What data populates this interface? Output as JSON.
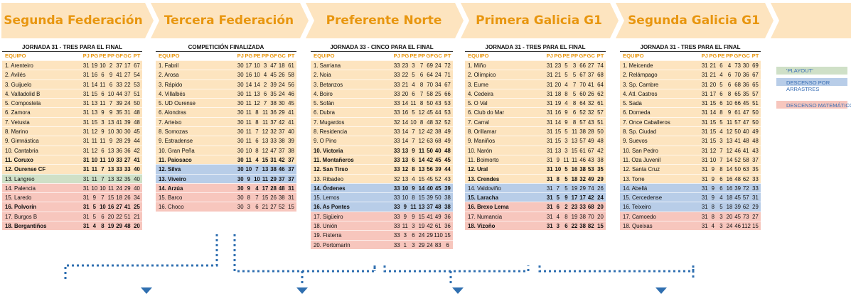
{
  "colors": {
    "header_text": "#e8960f",
    "banner": "#fde4bf",
    "playout": "#cfe0c7",
    "arrastres": "#b8cde8",
    "matematico": "#f7c6bd",
    "arrow": "#2f6fb0"
  },
  "columns": [
    "EQUIPO",
    "PJ",
    "PG",
    "PE",
    "PP",
    "GF",
    "GC",
    "PT"
  ],
  "legend": [
    {
      "key": "playout",
      "label": "'PLAYOUT'"
    },
    {
      "key": "arrastres",
      "label": "DESCENSO POR ARRASTRES"
    },
    {
      "key": "matematico",
      "label": "DESCENSO MATEMÁTICO"
    }
  ],
  "leagues": [
    {
      "title": "Segunda Federación",
      "subtitle": "JORNADA 31 - TRES PARA EL FINAL",
      "rows": [
        [
          "1. Arenteiro",
          "31",
          "19",
          "10",
          "2",
          "37",
          "17",
          "67",
          "def",
          false
        ],
        [
          "2. Avilés",
          "31",
          "16",
          "6",
          "9",
          "41",
          "27",
          "54",
          "def",
          false
        ],
        [
          "3. Guijuelo",
          "31",
          "14",
          "11",
          "6",
          "33",
          "22",
          "53",
          "def",
          false
        ],
        [
          "4. Valladolid B",
          "31",
          "15",
          "6",
          "10",
          "44",
          "37",
          "51",
          "def",
          false
        ],
        [
          "5. Compostela",
          "31",
          "13",
          "11",
          "7",
          "39",
          "24",
          "50",
          "def",
          false
        ],
        [
          "6. Zamora",
          "31",
          "13",
          "9",
          "9",
          "35",
          "31",
          "48",
          "def",
          false
        ],
        [
          "7. Vetusta",
          "31",
          "15",
          "3",
          "13",
          "41",
          "39",
          "48",
          "def",
          false
        ],
        [
          "8. Marino",
          "31",
          "12",
          "9",
          "10",
          "30",
          "30",
          "45",
          "def",
          false
        ],
        [
          "9. Gimnástica",
          "31",
          "11",
          "11",
          "9",
          "28",
          "29",
          "44",
          "def",
          false
        ],
        [
          "10. Cantabria",
          "31",
          "12",
          "6",
          "13",
          "36",
          "36",
          "42",
          "def",
          false
        ],
        [
          "11. Coruxo",
          "31",
          "10",
          "11",
          "10",
          "33",
          "27",
          "41",
          "def",
          true
        ],
        [
          "12. Ourense CF",
          "31",
          "11",
          "7",
          "13",
          "33",
          "33",
          "40",
          "def",
          true
        ],
        [
          "13. Langreo",
          "31",
          "11",
          "7",
          "13",
          "32",
          "35",
          "40",
          "play",
          false
        ],
        [
          "14. Palencia",
          "31",
          "10",
          "10",
          "11",
          "24",
          "29",
          "40",
          "mat",
          false
        ],
        [
          "15. Laredo",
          "31",
          "9",
          "7",
          "15",
          "18",
          "26",
          "34",
          "mat",
          false
        ],
        [
          "16. Polvorín",
          "31",
          "5",
          "10",
          "16",
          "27",
          "41",
          "25",
          "mat",
          true
        ],
        [
          "17. Burgos B",
          "31",
          "5",
          "6",
          "20",
          "22",
          "51",
          "21",
          "mat",
          false
        ],
        [
          "18. Bergantiños",
          "31",
          "4",
          "8",
          "19",
          "29",
          "48",
          "20",
          "mat",
          true
        ]
      ]
    },
    {
      "title": "Tercera Federación",
      "subtitle": "COMPETICIÓN FINALIZADA",
      "rows": [
        [
          "1. Fabril",
          "30",
          "17",
          "10",
          "3",
          "47",
          "18",
          "61",
          "def",
          false
        ],
        [
          "2. Arosa",
          "30",
          "16",
          "10",
          "4",
          "45",
          "26",
          "58",
          "def",
          false
        ],
        [
          "3. Rápido",
          "30",
          "14",
          "14",
          "2",
          "39",
          "24",
          "56",
          "def",
          false
        ],
        [
          "4. Villalbés",
          "30",
          "11",
          "13",
          "6",
          "35",
          "24",
          "46",
          "def",
          false
        ],
        [
          "5. UD Ourense",
          "30",
          "11",
          "12",
          "7",
          "38",
          "30",
          "45",
          "def",
          false
        ],
        [
          "6. Alondras",
          "30",
          "11",
          "8",
          "11",
          "36",
          "29",
          "41",
          "def",
          false
        ],
        [
          "7. Arteixo",
          "30",
          "11",
          "8",
          "11",
          "37",
          "42",
          "41",
          "def",
          false
        ],
        [
          "8. Somozas",
          "30",
          "11",
          "7",
          "12",
          "32",
          "37",
          "40",
          "def",
          false
        ],
        [
          "9. Estradense",
          "30",
          "11",
          "6",
          "13",
          "33",
          "38",
          "39",
          "def",
          false
        ],
        [
          "10. Gran Peña",
          "30",
          "10",
          "8",
          "12",
          "47",
          "37",
          "38",
          "def",
          false
        ],
        [
          "11. Paiosaco",
          "30",
          "11",
          "4",
          "15",
          "31",
          "42",
          "37",
          "def",
          true
        ],
        [
          "12. Silva",
          "30",
          "10",
          "7",
          "13",
          "38",
          "46",
          "37",
          "arr",
          true
        ],
        [
          "13. Viveiro",
          "30",
          "9",
          "10",
          "11",
          "29",
          "37",
          "37",
          "arr",
          true
        ],
        [
          "14. Arzúa",
          "30",
          "9",
          "4",
          "17",
          "28",
          "48",
          "31",
          "mat",
          true
        ],
        [
          "15. Barco",
          "30",
          "8",
          "7",
          "15",
          "26",
          "38",
          "31",
          "mat",
          false
        ],
        [
          "16. Choco",
          "30",
          "3",
          "6",
          "21",
          "27",
          "52",
          "15",
          "mat",
          false
        ]
      ]
    },
    {
      "title": "Preferente Norte",
      "subtitle": "JORNADA 33 - CINCO PARA EL FINAL",
      "rows": [
        [
          "1. Sarriana",
          "33",
          "23",
          "3",
          "7",
          "69",
          "24",
          "72",
          "def",
          false
        ],
        [
          "2. Noia",
          "33",
          "22",
          "5",
          "6",
          "64",
          "24",
          "71",
          "def",
          false
        ],
        [
          "3. Betanzos",
          "33",
          "21",
          "4",
          "8",
          "70",
          "34",
          "67",
          "def",
          false
        ],
        [
          "4. Boiro",
          "33",
          "20",
          "6",
          "7",
          "58",
          "25",
          "66",
          "def",
          false
        ],
        [
          "5. Sofán",
          "33",
          "14",
          "11",
          "8",
          "50",
          "43",
          "53",
          "def",
          false
        ],
        [
          "6. Dubra",
          "33",
          "16",
          "5",
          "12",
          "45",
          "44",
          "53",
          "def",
          false
        ],
        [
          "7. Mugardos",
          "32",
          "14",
          "10",
          "8",
          "48",
          "32",
          "52",
          "def",
          false
        ],
        [
          "8. Residencia",
          "33",
          "14",
          "7",
          "12",
          "42",
          "38",
          "49",
          "def",
          false
        ],
        [
          "9. O Pino",
          "33",
          "14",
          "7",
          "12",
          "63",
          "68",
          "49",
          "def",
          false
        ],
        [
          "10. Victoria",
          "33",
          "13",
          "9",
          "11",
          "50",
          "40",
          "48",
          "def",
          true
        ],
        [
          "11. Montañeros",
          "33",
          "13",
          "6",
          "14",
          "42",
          "45",
          "45",
          "def",
          true
        ],
        [
          "12. San Tirso",
          "33",
          "12",
          "8",
          "13",
          "56",
          "39",
          "44",
          "def",
          true
        ],
        [
          "13. Ribadeo",
          "32",
          "13",
          "4",
          "15",
          "45",
          "52",
          "43",
          "def",
          false
        ],
        [
          "14. Órdenes",
          "33",
          "10",
          "9",
          "14",
          "40",
          "45",
          "39",
          "arr",
          true
        ],
        [
          "15. Lemos",
          "33",
          "10",
          "8",
          "15",
          "39",
          "50",
          "38",
          "arr",
          false
        ],
        [
          "16. As Pontes",
          "33",
          "9",
          "11",
          "13",
          "37",
          "48",
          "38",
          "arr",
          true
        ],
        [
          "17. Sigüeiro",
          "33",
          "9",
          "9",
          "15",
          "41",
          "49",
          "36",
          "mat",
          false
        ],
        [
          "18. Unión",
          "33",
          "11",
          "3",
          "19",
          "42",
          "61",
          "36",
          "mat",
          false
        ],
        [
          "19. Fisterra",
          "33",
          "3",
          "6",
          "24",
          "29",
          "110",
          "15",
          "mat",
          false
        ],
        [
          "20. Portomarín",
          "33",
          "1",
          "3",
          "29",
          "24",
          "83",
          "6",
          "mat",
          false
        ]
      ]
    },
    {
      "title": "Primera Galicia G1",
      "subtitle": "JORNADA 31 - TRES PARA EL FINAL",
      "rows": [
        [
          "1. Miño",
          "31",
          "23",
          "5",
          "3",
          "66",
          "27",
          "74",
          "def",
          false
        ],
        [
          "2. Olímpico",
          "31",
          "21",
          "5",
          "5",
          "67",
          "37",
          "68",
          "def",
          false
        ],
        [
          "3. Eume",
          "31",
          "20",
          "4",
          "7",
          "70",
          "41",
          "64",
          "def",
          false
        ],
        [
          "4. Cedeira",
          "31",
          "18",
          "8",
          "5",
          "60",
          "26",
          "62",
          "def",
          false
        ],
        [
          "5. O Val",
          "31",
          "19",
          "4",
          "8",
          "64",
          "32",
          "61",
          "def",
          false
        ],
        [
          "6. Club do Mar",
          "31",
          "16",
          "9",
          "6",
          "52",
          "32",
          "57",
          "def",
          false
        ],
        [
          "7. Carral",
          "31",
          "14",
          "9",
          "8",
          "57",
          "43",
          "51",
          "def",
          false
        ],
        [
          "8. Orillamar",
          "31",
          "15",
          "5",
          "11",
          "38",
          "28",
          "50",
          "def",
          false
        ],
        [
          "9. Maniños",
          "31",
          "15",
          "3",
          "13",
          "57",
          "49",
          "48",
          "def",
          false
        ],
        [
          "10. Narón",
          "31",
          "13",
          "3",
          "15",
          "61",
          "67",
          "42",
          "def",
          false
        ],
        [
          "11. Boimorto",
          "31",
          "9",
          "11",
          "11",
          "46",
          "43",
          "38",
          "def",
          false
        ],
        [
          "12. Ural",
          "31",
          "10",
          "5",
          "16",
          "38",
          "53",
          "35",
          "def",
          true
        ],
        [
          "13. Crendes",
          "31",
          "8",
          "5",
          "18",
          "32",
          "49",
          "29",
          "def",
          true
        ],
        [
          "14. Valdoviño",
          "31",
          "7",
          "5",
          "19",
          "29",
          "74",
          "26",
          "arr",
          false
        ],
        [
          "15. Laracha",
          "31",
          "5",
          "9",
          "17",
          "17",
          "42",
          "24",
          "arr",
          true
        ],
        [
          "16. Brexo Lema",
          "31",
          "6",
          "2",
          "23",
          "33",
          "68",
          "20",
          "mat",
          true
        ],
        [
          "17. Numancia",
          "31",
          "4",
          "8",
          "19",
          "38",
          "70",
          "20",
          "mat",
          false
        ],
        [
          "18. Vizoño",
          "31",
          "3",
          "6",
          "22",
          "38",
          "82",
          "15",
          "mat",
          true
        ]
      ]
    },
    {
      "title": "Segunda Galicia G1",
      "subtitle": "JORNADA 31 - TRES PARA EL FINAL",
      "rows": [
        [
          "1. Meicende",
          "31",
          "21",
          "6",
          "4",
          "73",
          "30",
          "69",
          "def",
          false
        ],
        [
          "2. Relámpago",
          "31",
          "21",
          "4",
          "6",
          "70",
          "36",
          "67",
          "def",
          false
        ],
        [
          "3. Sp. Cambre",
          "31",
          "20",
          "5",
          "6",
          "68",
          "36",
          "65",
          "def",
          false
        ],
        [
          "4. Atl. Castros",
          "31",
          "17",
          "6",
          "8",
          "65",
          "35",
          "57",
          "def",
          false
        ],
        [
          "5. Sada",
          "31",
          "15",
          "6",
          "10",
          "66",
          "45",
          "51",
          "def",
          false
        ],
        [
          "6. Dorneda",
          "31",
          "14",
          "8",
          "9",
          "61",
          "47",
          "50",
          "def",
          false
        ],
        [
          "7. Once Caballeros",
          "31",
          "15",
          "5",
          "11",
          "57",
          "47",
          "50",
          "def",
          false
        ],
        [
          "8. Sp. Ciudad",
          "31",
          "15",
          "4",
          "12",
          "50",
          "40",
          "49",
          "def",
          false
        ],
        [
          "9. Suevos",
          "31",
          "15",
          "3",
          "13",
          "41",
          "48",
          "48",
          "def",
          false
        ],
        [
          "10. San Pedro",
          "31",
          "12",
          "7",
          "12",
          "46",
          "41",
          "43",
          "def",
          false
        ],
        [
          "11. Oza Juvenil",
          "31",
          "10",
          "7",
          "14",
          "52",
          "58",
          "37",
          "def",
          false
        ],
        [
          "12. Santa Cruz",
          "31",
          "9",
          "8",
          "14",
          "50",
          "63",
          "35",
          "def",
          false
        ],
        [
          "13. Torre",
          "31",
          "9",
          "6",
          "16",
          "48",
          "62",
          "33",
          "def",
          false
        ],
        [
          "14. Abellá",
          "31",
          "9",
          "6",
          "16",
          "39",
          "72",
          "33",
          "arr",
          false
        ],
        [
          "15. Cercedense",
          "31",
          "9",
          "4",
          "18",
          "45",
          "57",
          "31",
          "arr",
          false
        ],
        [
          "16. Teixeiro",
          "31",
          "8",
          "5",
          "18",
          "39",
          "62",
          "29",
          "arr",
          false
        ],
        [
          "17. Camoedo",
          "31",
          "8",
          "3",
          "20",
          "45",
          "73",
          "27",
          "mat",
          false
        ],
        [
          "18. Queixas",
          "31",
          "4",
          "3",
          "24",
          "46",
          "112",
          "15",
          "mat",
          false
        ]
      ]
    }
  ]
}
